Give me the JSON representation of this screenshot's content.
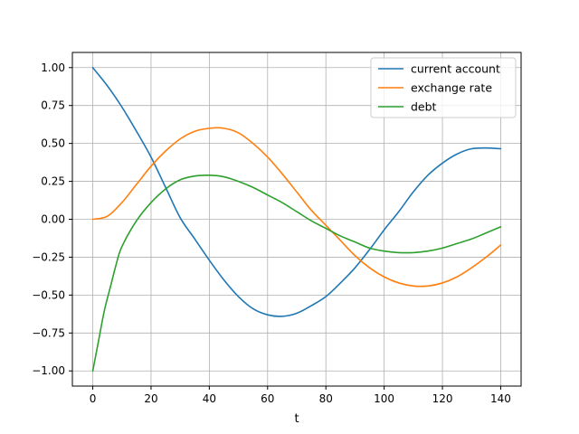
{
  "chart_data": {
    "type": "line",
    "title": "",
    "xlabel": "t",
    "ylabel": "",
    "xlim": [
      -7,
      147
    ],
    "ylim": [
      -1.1,
      1.1
    ],
    "xticks": [
      0,
      20,
      40,
      60,
      80,
      100,
      120,
      140
    ],
    "yticks": [
      -1.0,
      -0.75,
      -0.5,
      -0.25,
      0.0,
      0.25,
      0.5,
      0.75,
      1.0
    ],
    "xtick_labels": [
      "0",
      "20",
      "40",
      "60",
      "80",
      "100",
      "120",
      "140"
    ],
    "ytick_labels": [
      "−1.00",
      "−0.75",
      "−0.50",
      "−0.25",
      "0.00",
      "0.25",
      "0.50",
      "0.75",
      "1.00"
    ],
    "grid": true,
    "legend_position": "top-right",
    "series": [
      {
        "name": "current account",
        "color": "#1f77b4",
        "x": [
          0,
          5,
          10,
          15,
          20,
          25,
          30,
          35,
          40,
          45,
          50,
          55,
          60,
          65,
          70,
          75,
          80,
          85,
          90,
          95,
          100,
          105,
          110,
          115,
          120,
          125,
          130,
          135,
          140
        ],
        "y": [
          1.0,
          0.88,
          0.74,
          0.58,
          0.41,
          0.21,
          0.01,
          -0.13,
          -0.27,
          -0.4,
          -0.51,
          -0.59,
          -0.63,
          -0.64,
          -0.62,
          -0.57,
          -0.51,
          -0.42,
          -0.32,
          -0.2,
          -0.07,
          0.05,
          0.18,
          0.29,
          0.37,
          0.43,
          0.465,
          0.47,
          0.465
        ]
      },
      {
        "name": "exchange rate",
        "color": "#ff7f0e",
        "x": [
          0,
          5,
          10,
          15,
          20,
          25,
          30,
          35,
          40,
          45,
          50,
          55,
          60,
          65,
          70,
          75,
          80,
          85,
          90,
          95,
          100,
          105,
          110,
          115,
          120,
          125,
          130,
          135,
          140
        ],
        "y": [
          0.0,
          0.02,
          0.11,
          0.23,
          0.35,
          0.45,
          0.53,
          0.58,
          0.6,
          0.6,
          0.57,
          0.5,
          0.41,
          0.3,
          0.18,
          0.06,
          -0.04,
          -0.14,
          -0.24,
          -0.32,
          -0.38,
          -0.42,
          -0.44,
          -0.44,
          -0.42,
          -0.38,
          -0.32,
          -0.25,
          -0.17
        ]
      },
      {
        "name": "debt",
        "color": "#2ca02c",
        "x": [
          0,
          2,
          4,
          6,
          8,
          10,
          15,
          20,
          25,
          30,
          35,
          40,
          45,
          50,
          55,
          60,
          65,
          70,
          75,
          80,
          85,
          90,
          95,
          100,
          105,
          110,
          115,
          120,
          125,
          130,
          135,
          140
        ],
        "y": [
          -1.0,
          -0.8,
          -0.6,
          -0.45,
          -0.3,
          -0.18,
          -0.01,
          0.11,
          0.2,
          0.26,
          0.285,
          0.29,
          0.28,
          0.25,
          0.21,
          0.16,
          0.11,
          0.05,
          -0.01,
          -0.06,
          -0.11,
          -0.15,
          -0.19,
          -0.21,
          -0.22,
          -0.22,
          -0.21,
          -0.19,
          -0.16,
          -0.13,
          -0.09,
          -0.05
        ]
      }
    ]
  }
}
